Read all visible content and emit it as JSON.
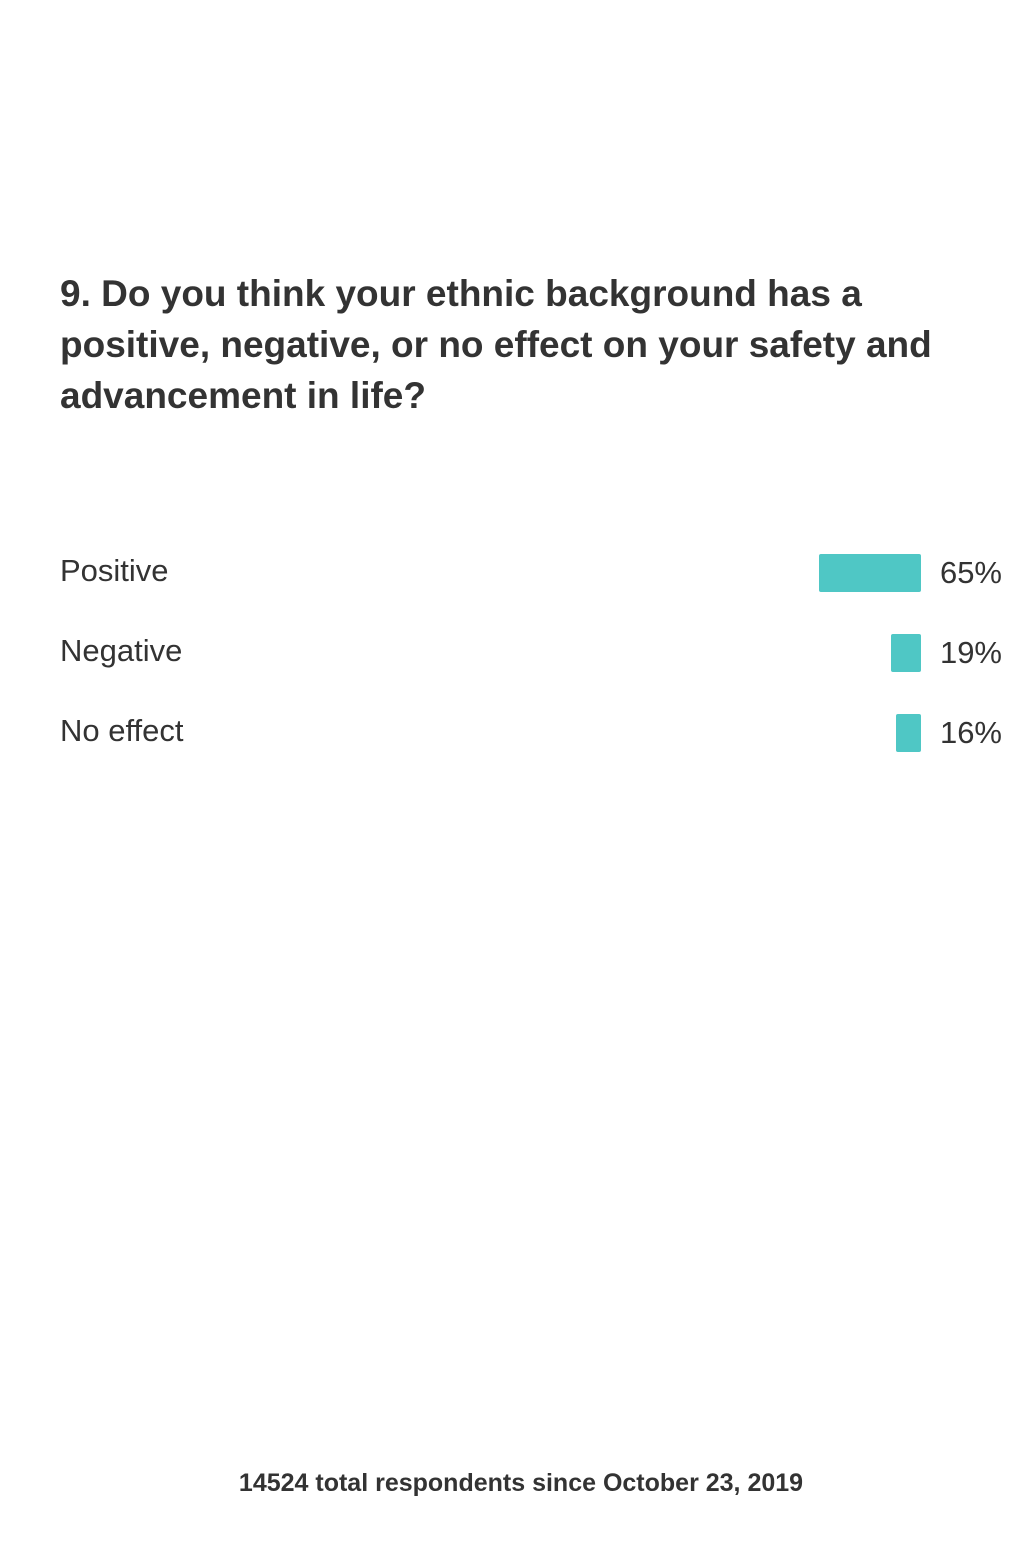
{
  "chart_data": {
    "type": "bar",
    "orientation": "horizontal",
    "title": "9. Do you think your ethnic background has a positive, negative, or no effect on your safety and advancement in life?",
    "categories": [
      "Positive",
      "Negative",
      "No effect"
    ],
    "values": [
      65,
      19,
      16
    ],
    "value_labels": [
      "65%",
      "19%",
      "16%"
    ],
    "unit": "%",
    "xlim": [
      0,
      100
    ],
    "grid": false,
    "legend": "none",
    "bar_color": "#4fc7c5"
  },
  "footer": {
    "text": "14524 total respondents since October 23, 2019"
  }
}
